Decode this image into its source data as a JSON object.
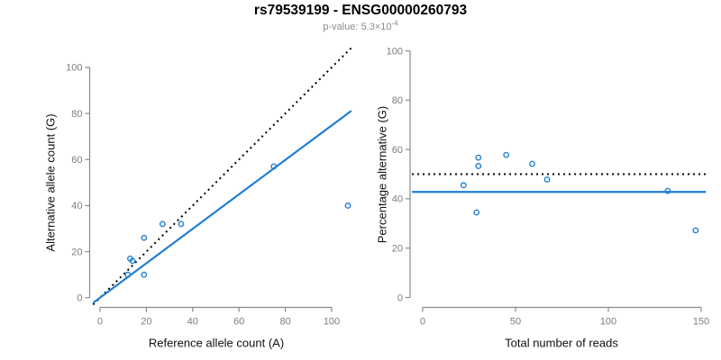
{
  "header": {
    "title": "rs79539199 - ENSG00000260793",
    "subtitle_prefix": "p-value: ",
    "subtitle_mantissa": "5.3×10",
    "subtitle_exponent": "-4"
  },
  "colors": {
    "point": "#1f7fd4",
    "fit_line": "#1f7fd4",
    "reference_line": "#000000",
    "axis": "#8a8a8a",
    "tick_label": "#7d7d7d",
    "axis_title": "#111111",
    "title": "#000000",
    "subtitle": "#8c8c8c"
  },
  "chart_data": [
    {
      "type": "scatter",
      "xlabel": "Reference allele count (A)",
      "ylabel": "Alternative allele count (G)",
      "xlim": [
        0,
        107
      ],
      "ylim": [
        0,
        107
      ],
      "xticks": [
        0,
        20,
        40,
        60,
        80,
        100
      ],
      "yticks": [
        0,
        20,
        40,
        60,
        80,
        100
      ],
      "grid": false,
      "legend": "none",
      "points": [
        [
          12,
          10
        ],
        [
          13,
          17
        ],
        [
          14,
          16
        ],
        [
          19,
          10
        ],
        [
          19,
          26
        ],
        [
          27,
          32
        ],
        [
          35,
          32
        ],
        [
          75,
          57
        ],
        [
          107,
          40
        ]
      ],
      "lines": [
        {
          "name": "identity-line",
          "style": "dotted",
          "color": "#000000",
          "slope": 1,
          "intercept": 0
        },
        {
          "name": "fit-line",
          "style": "solid",
          "color": "#1f7fd4",
          "slope": 0.748,
          "intercept": 0
        }
      ]
    },
    {
      "type": "scatter",
      "xlabel": "Total number of reads",
      "ylabel": "Percentage alternative (G)",
      "xlim": [
        0,
        150
      ],
      "ylim": [
        0,
        100
      ],
      "xticks": [
        0,
        50,
        100,
        150
      ],
      "yticks": [
        0,
        20,
        40,
        60,
        80,
        100
      ],
      "grid": false,
      "legend": "none",
      "points": [
        [
          22,
          45.5
        ],
        [
          29,
          34.5
        ],
        [
          30,
          56.7
        ],
        [
          30,
          53.3
        ],
        [
          45,
          57.8
        ],
        [
          59,
          54.2
        ],
        [
          67,
          47.8
        ],
        [
          132,
          43.2
        ],
        [
          147,
          27.2
        ]
      ],
      "lines": [
        {
          "name": "null-expectation-line",
          "style": "dotted",
          "color": "#000000",
          "y": 50
        },
        {
          "name": "mean-percentage-line",
          "style": "solid",
          "color": "#1f7fd4",
          "y": 42.8
        }
      ]
    }
  ]
}
